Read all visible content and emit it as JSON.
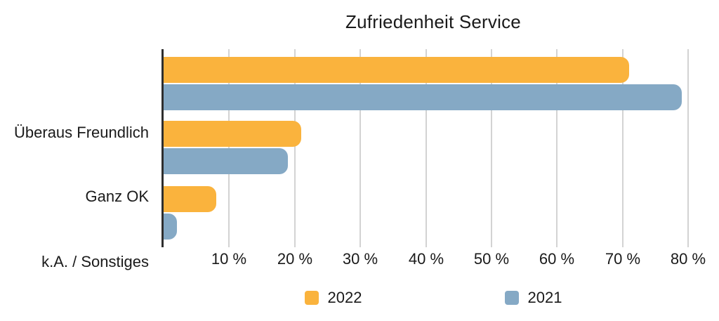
{
  "title": "Zufriedenheit Service",
  "chart_data": {
    "type": "bar",
    "orientation": "horizontal",
    "title": "Zufriedenheit Service",
    "categories": [
      "Überaus Freundlich",
      "Ganz OK",
      "k.A. / Sonstiges"
    ],
    "series": [
      {
        "name": "2022",
        "color": "#FAB33D",
        "values": [
          71,
          21,
          8
        ]
      },
      {
        "name": "2021",
        "color": "#85A9C5",
        "values": [
          79,
          19,
          2
        ]
      }
    ],
    "x_ticks": [
      10,
      20,
      30,
      40,
      50,
      60,
      70,
      80
    ],
    "x_tick_suffix": " %",
    "xlim": [
      0,
      80
    ],
    "grid": "vertical-gridlines-on",
    "legend_position": "bottom"
  },
  "colors": {
    "background": "#FFFFFF",
    "axis": "#2E2E2E",
    "gridline": "#D3D3D3",
    "text": "#1A1A1A",
    "series_2022": "#FAB33D",
    "series_2021": "#85A9C5"
  }
}
